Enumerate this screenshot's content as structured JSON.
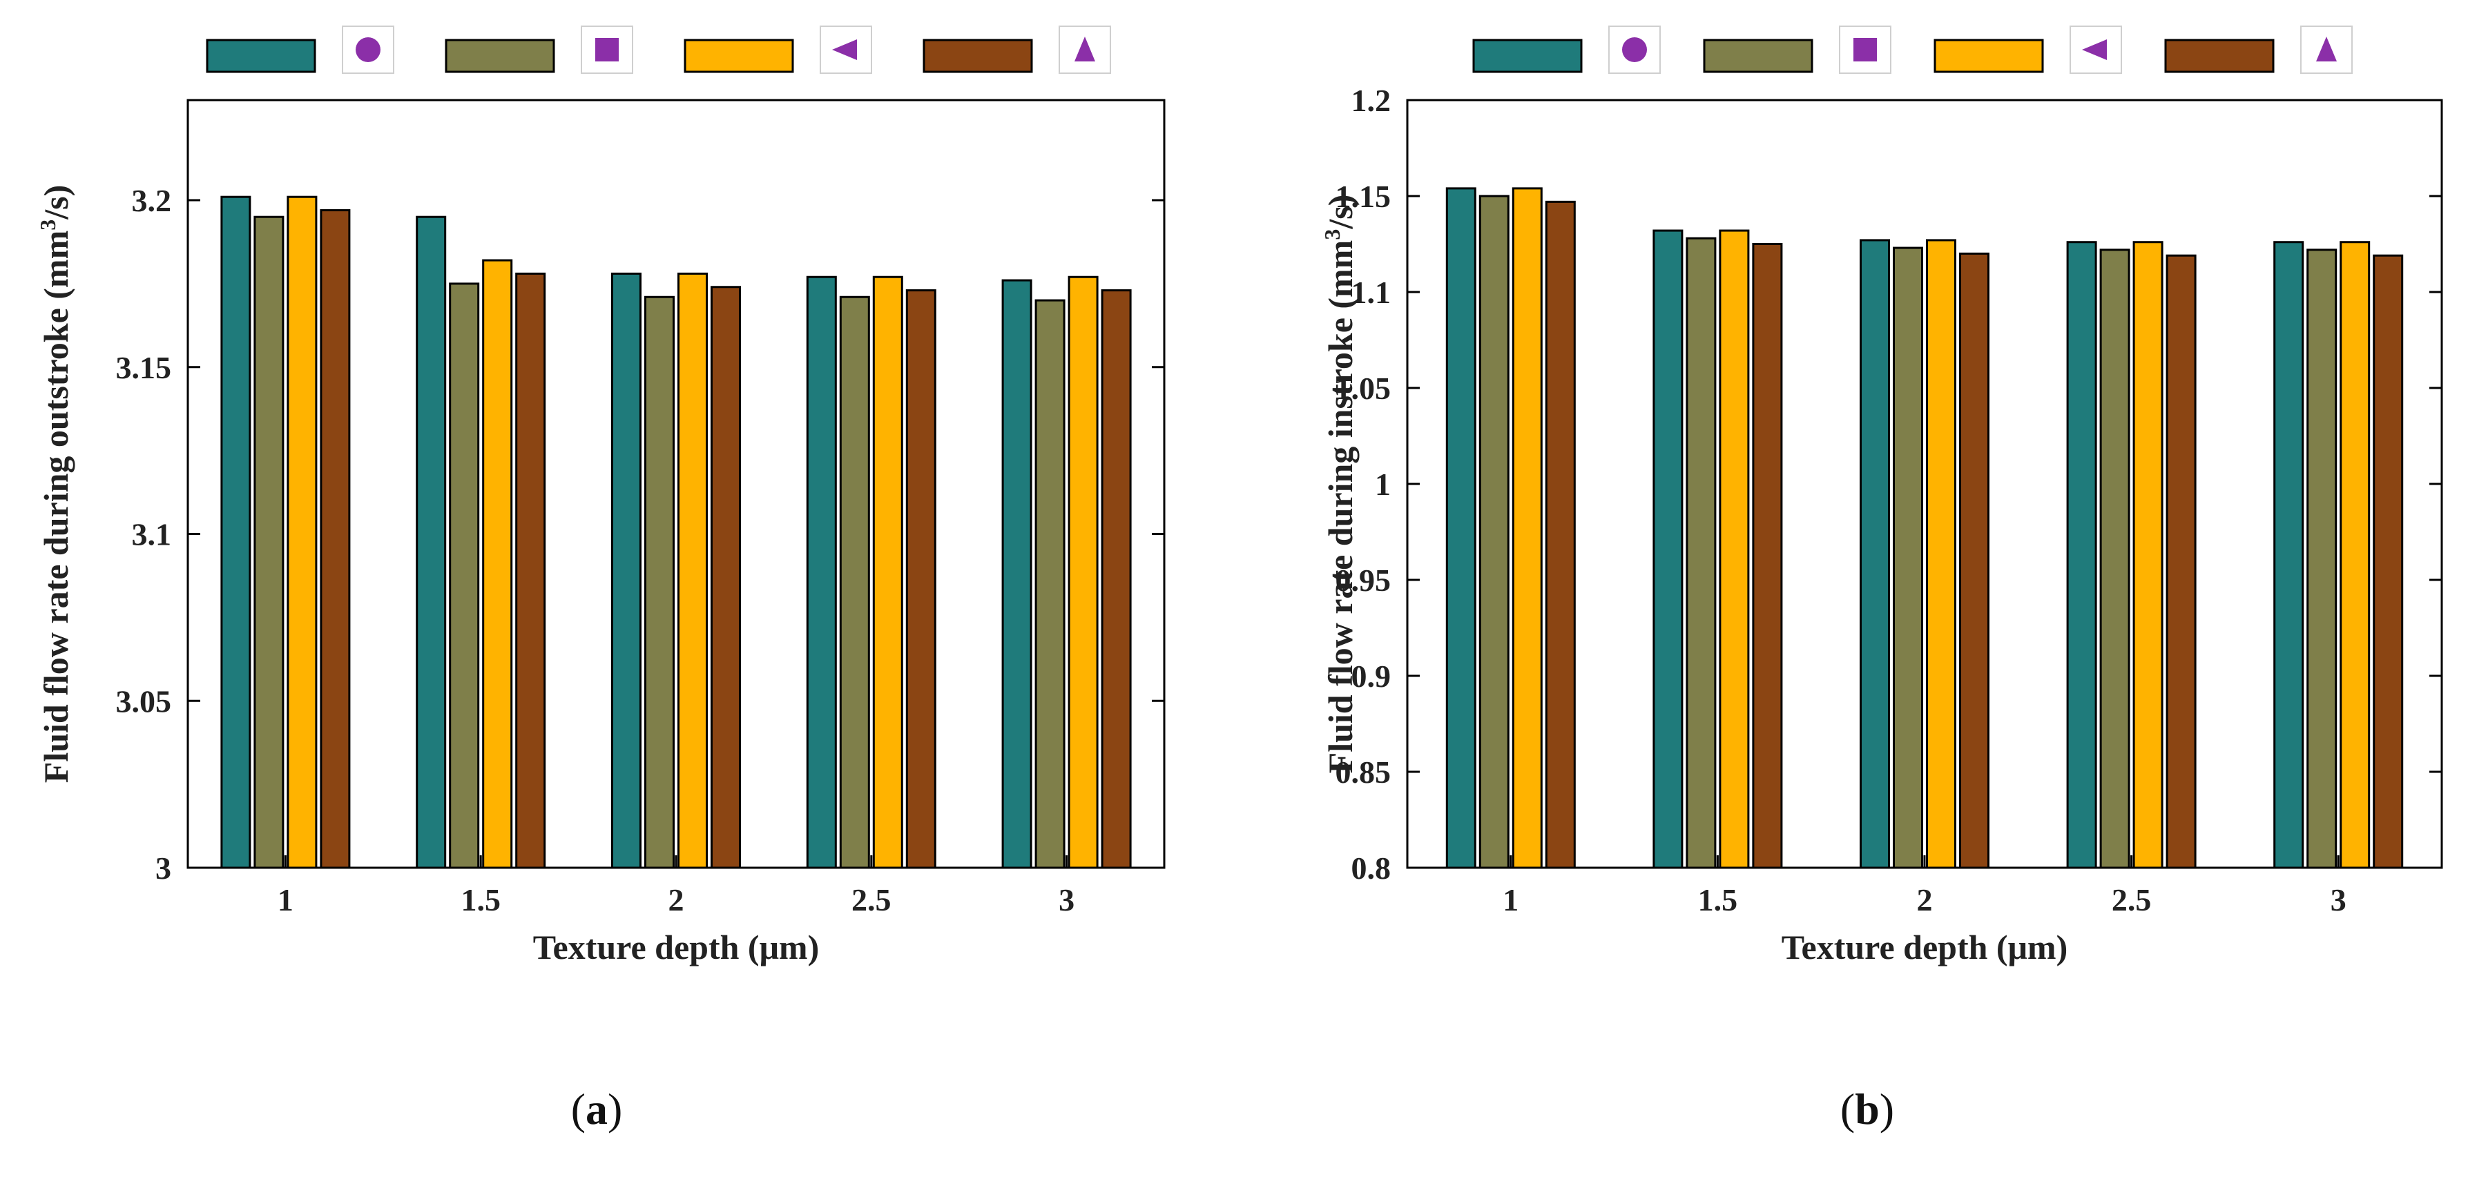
{
  "chart_data": [
    {
      "type": "bar",
      "panel": "a",
      "categories": [
        "1",
        "1.5",
        "2",
        "2.5",
        "3"
      ],
      "xlabel": "Texture depth (μm)",
      "ylabel_main": "Fluid flow rate during outstroke (mm",
      "ylabel_sup": "3",
      "ylabel_tail": "/s)",
      "ylim": [
        3.0,
        3.23
      ],
      "yticks": [
        3,
        3.05,
        3.1,
        3.15,
        3.2
      ],
      "ytick_labels": [
        "3",
        "3.05",
        "3.1",
        "3.15",
        "3.2"
      ],
      "legend_position": "top",
      "series": [
        {
          "color": "#1f7b7b",
          "marker": "circle-icon",
          "values": [
            3.201,
            3.195,
            3.178,
            3.177,
            3.176
          ]
        },
        {
          "color": "#7f7f4a",
          "marker": "square-icon",
          "values": [
            3.195,
            3.175,
            3.171,
            3.171,
            3.17
          ]
        },
        {
          "color": "#ffb300",
          "marker": "triangle-left-icon",
          "values": [
            3.201,
            3.182,
            3.178,
            3.177,
            3.177
          ]
        },
        {
          "color": "#8b4513",
          "marker": "triangle-up-icon",
          "values": [
            3.197,
            3.178,
            3.174,
            3.173,
            3.173
          ]
        }
      ]
    },
    {
      "type": "bar",
      "panel": "b",
      "categories": [
        "1",
        "1.5",
        "2",
        "2.5",
        "3"
      ],
      "xlabel": "Texture depth (μm)",
      "ylabel_main": "Fluid flow rate during instroke (mm",
      "ylabel_sup": "3",
      "ylabel_tail": "/s)",
      "ylim": [
        0.8,
        1.2
      ],
      "yticks": [
        0.8,
        0.85,
        0.9,
        0.95,
        1,
        1.05,
        1.1,
        1.15,
        1.2
      ],
      "ytick_labels": [
        "0.8",
        "0.85",
        "0.9",
        "0.95",
        "1",
        "1.05",
        "1.1",
        "1.15",
        "1.2"
      ],
      "legend_position": "top",
      "series": [
        {
          "color": "#1f7b7b",
          "marker": "circle-icon",
          "values": [
            1.154,
            1.132,
            1.127,
            1.126,
            1.126
          ]
        },
        {
          "color": "#7f7f4a",
          "marker": "square-icon",
          "values": [
            1.15,
            1.128,
            1.123,
            1.122,
            1.122
          ]
        },
        {
          "color": "#ffb300",
          "marker": "triangle-left-icon",
          "values": [
            1.154,
            1.132,
            1.127,
            1.126,
            1.126
          ]
        },
        {
          "color": "#8b4513",
          "marker": "triangle-up-icon",
          "values": [
            1.147,
            1.125,
            1.12,
            1.119,
            1.119
          ]
        }
      ]
    }
  ],
  "captions": {
    "a": "a",
    "b": "b"
  },
  "marker_color": "#8b2fa8"
}
